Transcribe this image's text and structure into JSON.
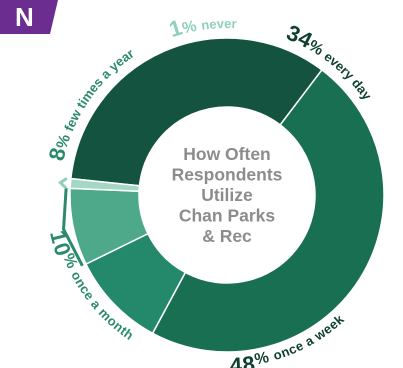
{
  "badge": {
    "text": "N",
    "color": "#6b2d8f"
  },
  "chart_data": {
    "type": "pie",
    "title": "How Often Respondents Utilize Chan Parks & Rec",
    "title_lines": [
      "How Often",
      "Respondents",
      "Utilize",
      "Chan Parks",
      "& Rec"
    ],
    "unit": "%",
    "slices": [
      {
        "label": "every day",
        "value": 34,
        "color": "#13533f"
      },
      {
        "label": "once a week",
        "value": 48,
        "color": "#186f51"
      },
      {
        "label": "once a month",
        "value": 10,
        "color": "#23896a"
      },
      {
        "label": "few times a year",
        "value": 8,
        "color": "#4ea98a"
      },
      {
        "label": "never",
        "value": 1,
        "color": "#a4d8c4"
      }
    ],
    "label_colors": {
      "dark": "#0f3f31",
      "mid": "#2a8a6a",
      "light": "#8fd0b7"
    }
  }
}
